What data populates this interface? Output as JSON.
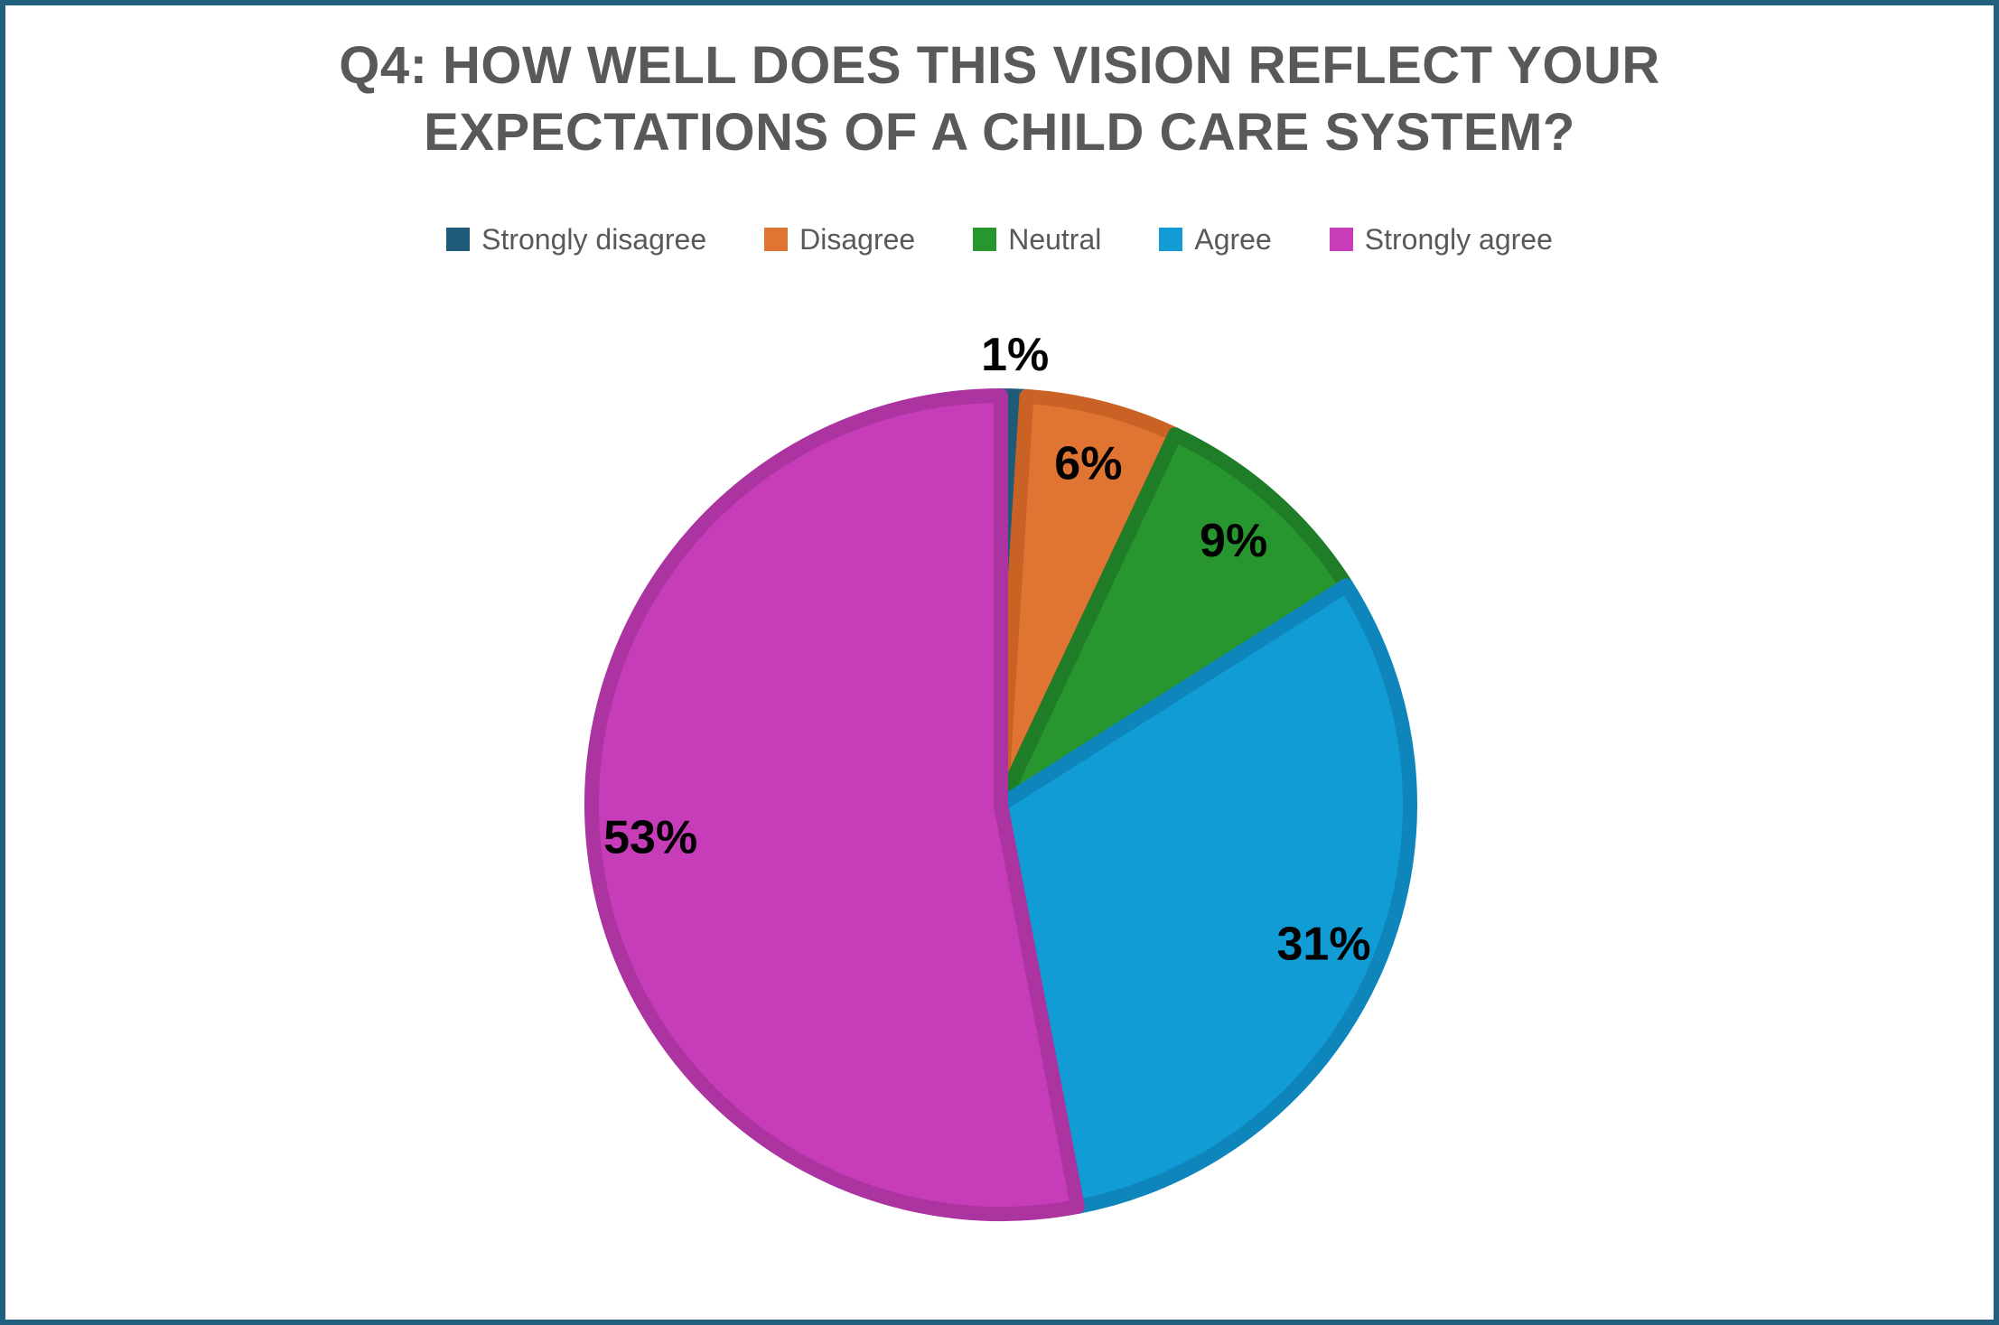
{
  "frame": {
    "border_color": "#226080",
    "background": "#FFFFFF"
  },
  "chart_data": {
    "type": "pie",
    "title": "Q4: HOW WELL DOES THIS VISION REFLECT YOUR EXPECTATIONS OF A CHILD CARE SYSTEM?",
    "title_lines": [
      "Q4: HOW WELL DOES THIS VISION REFLECT YOUR",
      "EXPECTATIONS OF A CHILD CARE SYSTEM?"
    ],
    "title_color": "#595959",
    "legend_position": "top",
    "categories": [
      "Strongly disagree",
      "Disagree",
      "Neutral",
      "Agree",
      "Strongly agree"
    ],
    "values": [
      1,
      6,
      9,
      31,
      53
    ],
    "data_labels": [
      "1%",
      "6%",
      "9%",
      "31%",
      "53%"
    ],
    "colors": [
      "#1F5B78",
      "#DF7433",
      "#28962F",
      "#119CD5",
      "#C73CB9"
    ],
    "border_colors": [
      "#1F5B78",
      "#CA6226",
      "#1E7D26",
      "#0F86BB",
      "#AC34A1"
    ],
    "label_color": "#000000",
    "start_angle": "top",
    "direction": "clockwise"
  }
}
